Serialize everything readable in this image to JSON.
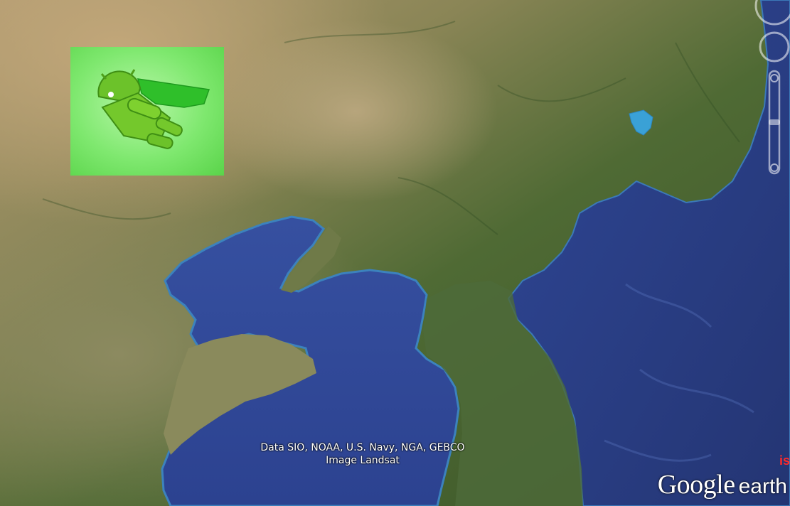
{
  "attribution": {
    "line1": "Data SIO, NOAA, U.S. Navy, NGA, GEBCO",
    "line2": "Image Landsat"
  },
  "logo": {
    "word1": "Google",
    "word2": "earth"
  },
  "edge_text": "is",
  "overlay": {
    "icon": "android-superhero-icon"
  },
  "colors": {
    "land_dark": "#3f5c2c",
    "land_mid": "#6b7a48",
    "land_arid": "#a9946a",
    "sea": "#2e3d84",
    "sea_shallow": "#3d6fb0",
    "overlay_green": "#7fe86f"
  }
}
